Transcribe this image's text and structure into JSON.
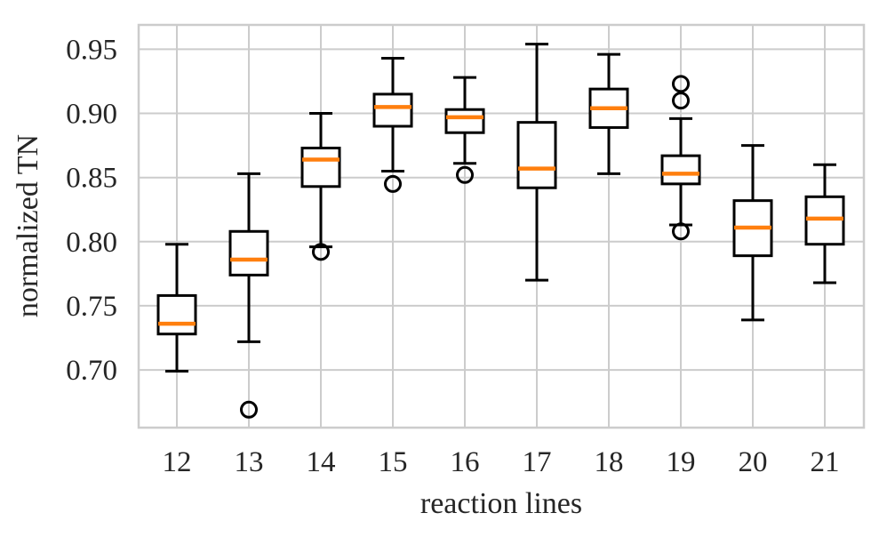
{
  "chart_data": {
    "type": "boxplot",
    "title": "",
    "xlabel": "reaction lines",
    "ylabel": "normalized TN",
    "categories": [
      "12",
      "13",
      "14",
      "15",
      "16",
      "17",
      "18",
      "19",
      "20",
      "21"
    ],
    "boxes": [
      {
        "label": "12",
        "whislo": 0.699,
        "q1": 0.728,
        "med": 0.736,
        "q3": 0.758,
        "whishi": 0.798,
        "fliers": []
      },
      {
        "label": "13",
        "whislo": 0.722,
        "q1": 0.774,
        "med": 0.786,
        "q3": 0.808,
        "whishi": 0.853,
        "fliers": [
          0.669
        ]
      },
      {
        "label": "14",
        "whislo": 0.796,
        "q1": 0.843,
        "med": 0.864,
        "q3": 0.873,
        "whishi": 0.9,
        "fliers": [
          0.792
        ]
      },
      {
        "label": "15",
        "whislo": 0.855,
        "q1": 0.89,
        "med": 0.905,
        "q3": 0.915,
        "whishi": 0.943,
        "fliers": [
          0.845
        ]
      },
      {
        "label": "16",
        "whislo": 0.861,
        "q1": 0.885,
        "med": 0.897,
        "q3": 0.903,
        "whishi": 0.928,
        "fliers": [
          0.852
        ]
      },
      {
        "label": "17",
        "whislo": 0.77,
        "q1": 0.842,
        "med": 0.857,
        "q3": 0.893,
        "whishi": 0.954,
        "fliers": []
      },
      {
        "label": "18",
        "whislo": 0.853,
        "q1": 0.889,
        "med": 0.904,
        "q3": 0.919,
        "whishi": 0.946,
        "fliers": []
      },
      {
        "label": "19",
        "whislo": 0.813,
        "q1": 0.845,
        "med": 0.853,
        "q3": 0.867,
        "whishi": 0.896,
        "fliers": [
          0.808,
          0.91,
          0.923
        ]
      },
      {
        "label": "20",
        "whislo": 0.739,
        "q1": 0.789,
        "med": 0.811,
        "q3": 0.832,
        "whishi": 0.875,
        "fliers": []
      },
      {
        "label": "21",
        "whislo": 0.768,
        "q1": 0.798,
        "med": 0.818,
        "q3": 0.835,
        "whishi": 0.86,
        "fliers": []
      }
    ],
    "yticks": [
      0.7,
      0.75,
      0.8,
      0.85,
      0.9,
      0.95
    ],
    "ytick_labels": [
      "0.70",
      "0.75",
      "0.80",
      "0.85",
      "0.90",
      "0.95"
    ],
    "ylim": [
      0.655,
      0.969
    ],
    "grid": true,
    "legend": null,
    "colors": {
      "box_line": "#000000",
      "median": "#ff7f0e",
      "grid": "#cccccc",
      "text": "#262626",
      "background": "#ffffff"
    }
  }
}
